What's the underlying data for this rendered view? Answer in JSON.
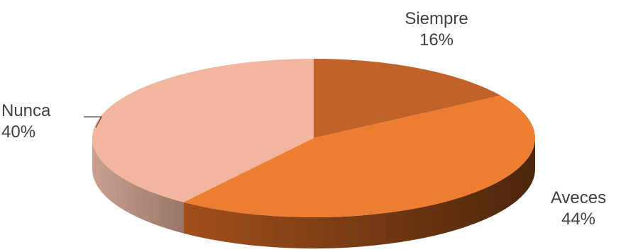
{
  "chart_data": {
    "type": "pie",
    "style": "3d",
    "slices": [
      {
        "label": "Siempre",
        "value": 16,
        "display": "16%",
        "color": "#c0622a",
        "side_color": "#7a3a14"
      },
      {
        "label": "Aveces",
        "value": 44,
        "display": "44%",
        "color": "#ed7d31",
        "side_color": "#6b3613"
      },
      {
        "label": "Nunca",
        "value": 40,
        "display": "40%",
        "color": "#f2b59e",
        "side_color": "#b88d7f"
      }
    ]
  }
}
